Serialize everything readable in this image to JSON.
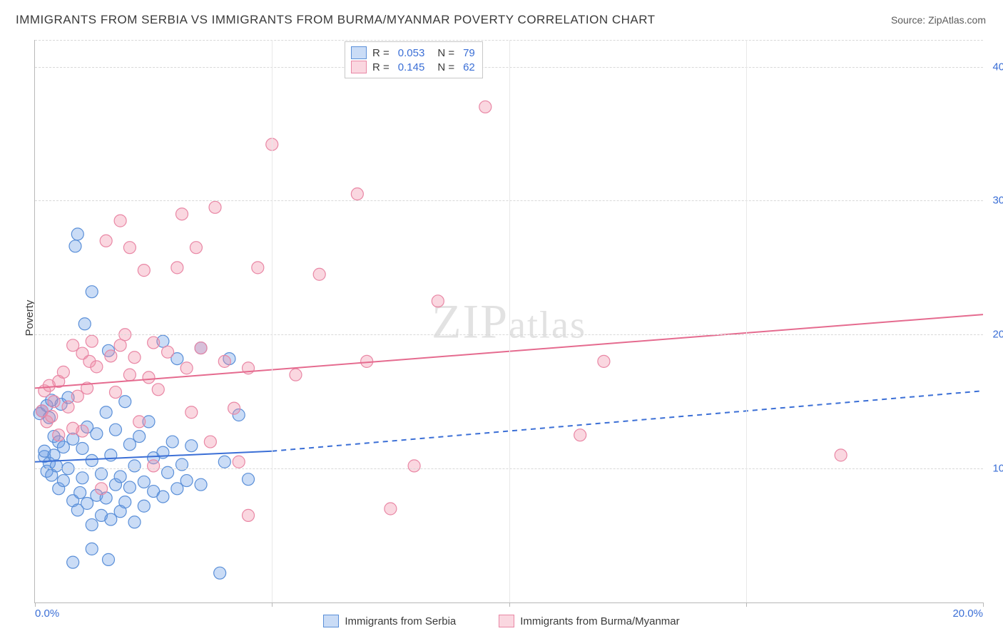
{
  "title": "IMMIGRANTS FROM SERBIA VS IMMIGRANTS FROM BURMA/MYANMAR POVERTY CORRELATION CHART",
  "source": "Source: ZipAtlas.com",
  "watermark": {
    "zip": "ZIP",
    "atlas": "atlas"
  },
  "y_axis_title": "Poverty",
  "chart": {
    "type": "scatter",
    "background_color": "#ffffff",
    "grid_color": "#d8d8d8",
    "xlim": [
      0,
      20
    ],
    "ylim": [
      0,
      42
    ],
    "xticks": [
      {
        "v": 0,
        "label": "0.0%"
      },
      {
        "v": 5,
        "label": ""
      },
      {
        "v": 10,
        "label": ""
      },
      {
        "v": 15,
        "label": ""
      },
      {
        "v": 20,
        "label": "20.0%"
      }
    ],
    "yticks": [
      {
        "v": 10,
        "label": "10.0%"
      },
      {
        "v": 20,
        "label": "20.0%"
      },
      {
        "v": 30,
        "label": "30.0%"
      },
      {
        "v": 40,
        "label": "40.0%"
      }
    ],
    "marker_radius": 8.5,
    "series": [
      {
        "name": "Immigrants from Serbia",
        "color_fill": "rgba(104,154,230,0.35)",
        "color_stroke": "#5a8fd8",
        "r_label": "R =",
        "r_value": "0.053",
        "n_label": "N =",
        "n_value": "79",
        "trend": {
          "solid": {
            "x1": 0,
            "y1": 10.5,
            "x2": 5,
            "y2": 11.3
          },
          "dashed": {
            "x1": 5,
            "y1": 11.3,
            "x2": 20,
            "y2": 15.8
          },
          "color": "#3b6fd6",
          "width": 2
        },
        "points": [
          [
            0.1,
            14.1
          ],
          [
            0.15,
            14.3
          ],
          [
            0.2,
            10.9
          ],
          [
            0.2,
            11.3
          ],
          [
            0.25,
            14.7
          ],
          [
            0.25,
            9.8
          ],
          [
            0.3,
            10.4
          ],
          [
            0.3,
            13.8
          ],
          [
            0.35,
            15.1
          ],
          [
            0.35,
            9.5
          ],
          [
            0.4,
            11.0
          ],
          [
            0.4,
            12.4
          ],
          [
            0.45,
            10.2
          ],
          [
            0.5,
            8.5
          ],
          [
            0.5,
            12.0
          ],
          [
            0.55,
            14.8
          ],
          [
            0.6,
            11.6
          ],
          [
            0.6,
            9.1
          ],
          [
            0.7,
            10.0
          ],
          [
            0.7,
            15.3
          ],
          [
            0.8,
            7.6
          ],
          [
            0.8,
            12.2
          ],
          [
            0.85,
            26.6
          ],
          [
            0.9,
            6.9
          ],
          [
            0.9,
            27.5
          ],
          [
            0.95,
            8.2
          ],
          [
            1.0,
            11.5
          ],
          [
            1.0,
            9.3
          ],
          [
            1.05,
            20.8
          ],
          [
            1.1,
            7.4
          ],
          [
            1.1,
            13.1
          ],
          [
            1.2,
            10.6
          ],
          [
            1.2,
            5.8
          ],
          [
            1.2,
            23.2
          ],
          [
            1.3,
            8.0
          ],
          [
            1.3,
            12.6
          ],
          [
            1.4,
            9.6
          ],
          [
            1.4,
            6.5
          ],
          [
            1.5,
            14.2
          ],
          [
            1.5,
            7.8
          ],
          [
            1.55,
            18.8
          ],
          [
            1.6,
            11.0
          ],
          [
            1.6,
            6.2
          ],
          [
            1.7,
            8.8
          ],
          [
            1.7,
            12.9
          ],
          [
            1.8,
            9.4
          ],
          [
            1.8,
            6.8
          ],
          [
            1.9,
            15.0
          ],
          [
            1.9,
            7.5
          ],
          [
            2.0,
            11.8
          ],
          [
            2.0,
            8.6
          ],
          [
            2.1,
            10.2
          ],
          [
            2.1,
            6.0
          ],
          [
            2.2,
            12.4
          ],
          [
            2.3,
            9.0
          ],
          [
            2.3,
            7.2
          ],
          [
            2.4,
            13.5
          ],
          [
            2.5,
            8.3
          ],
          [
            2.5,
            10.8
          ],
          [
            2.7,
            11.2
          ],
          [
            2.7,
            7.9
          ],
          [
            2.8,
            9.7
          ],
          [
            2.9,
            12.0
          ],
          [
            3.0,
            18.2
          ],
          [
            3.0,
            8.5
          ],
          [
            3.1,
            10.3
          ],
          [
            3.2,
            9.1
          ],
          [
            3.3,
            11.7
          ],
          [
            3.5,
            8.8
          ],
          [
            3.5,
            19.0
          ],
          [
            3.9,
            2.2
          ],
          [
            4.0,
            10.5
          ],
          [
            4.1,
            18.2
          ],
          [
            4.3,
            14.0
          ],
          [
            4.5,
            9.2
          ],
          [
            1.2,
            4.0
          ],
          [
            0.8,
            3.0
          ],
          [
            1.55,
            3.2
          ],
          [
            2.7,
            19.5
          ]
        ]
      },
      {
        "name": "Immigrants from Burma/Myanmar",
        "color_fill": "rgba(240,140,165,0.35)",
        "color_stroke": "#e987a5",
        "r_label": "R =",
        "r_value": "0.145",
        "n_label": "N =",
        "n_value": "62",
        "trend": {
          "solid": {
            "x1": 0,
            "y1": 16.0,
            "x2": 20,
            "y2": 21.5
          },
          "color": "#e56b8f",
          "width": 2
        },
        "points": [
          [
            0.15,
            14.3
          ],
          [
            0.2,
            15.8
          ],
          [
            0.25,
            13.5
          ],
          [
            0.3,
            16.2
          ],
          [
            0.35,
            13.9
          ],
          [
            0.4,
            15.0
          ],
          [
            0.5,
            16.5
          ],
          [
            0.5,
            12.5
          ],
          [
            0.6,
            17.2
          ],
          [
            0.7,
            14.6
          ],
          [
            0.8,
            19.2
          ],
          [
            0.9,
            15.4
          ],
          [
            1.0,
            18.6
          ],
          [
            1.0,
            12.8
          ],
          [
            1.1,
            16.0
          ],
          [
            1.15,
            18.0
          ],
          [
            1.2,
            19.5
          ],
          [
            1.3,
            17.6
          ],
          [
            1.4,
            8.5
          ],
          [
            1.5,
            27.0
          ],
          [
            1.6,
            18.4
          ],
          [
            1.7,
            15.7
          ],
          [
            1.8,
            19.2
          ],
          [
            1.9,
            20.0
          ],
          [
            2.0,
            26.5
          ],
          [
            2.0,
            17.0
          ],
          [
            2.1,
            18.3
          ],
          [
            2.2,
            13.5
          ],
          [
            2.3,
            24.8
          ],
          [
            2.4,
            16.8
          ],
          [
            2.5,
            19.4
          ],
          [
            2.6,
            15.9
          ],
          [
            2.8,
            18.7
          ],
          [
            3.0,
            25.0
          ],
          [
            3.1,
            29.0
          ],
          [
            3.2,
            17.5
          ],
          [
            3.3,
            14.2
          ],
          [
            3.4,
            26.5
          ],
          [
            3.5,
            19.0
          ],
          [
            3.8,
            29.5
          ],
          [
            4.0,
            18.0
          ],
          [
            4.2,
            14.5
          ],
          [
            4.3,
            10.5
          ],
          [
            4.5,
            6.5
          ],
          [
            4.7,
            25.0
          ],
          [
            5.0,
            34.2
          ],
          [
            5.5,
            17.0
          ],
          [
            6.0,
            24.5
          ],
          [
            6.8,
            30.5
          ],
          [
            7.0,
            18.0
          ],
          [
            7.5,
            7.0
          ],
          [
            8.0,
            10.2
          ],
          [
            8.5,
            22.5
          ],
          [
            9.5,
            37.0
          ],
          [
            12.0,
            18.0
          ],
          [
            11.5,
            12.5
          ],
          [
            17.0,
            11.0
          ],
          [
            4.5,
            17.5
          ],
          [
            2.5,
            10.2
          ],
          [
            3.7,
            12.0
          ],
          [
            1.8,
            28.5
          ],
          [
            0.8,
            13.0
          ]
        ]
      }
    ]
  },
  "bottom_legend": [
    {
      "label": "Immigrants from Serbia",
      "fill": "rgba(104,154,230,0.35)",
      "stroke": "#5a8fd8"
    },
    {
      "label": "Immigrants from Burma/Myanmar",
      "fill": "rgba(240,140,165,0.35)",
      "stroke": "#e987a5"
    }
  ]
}
